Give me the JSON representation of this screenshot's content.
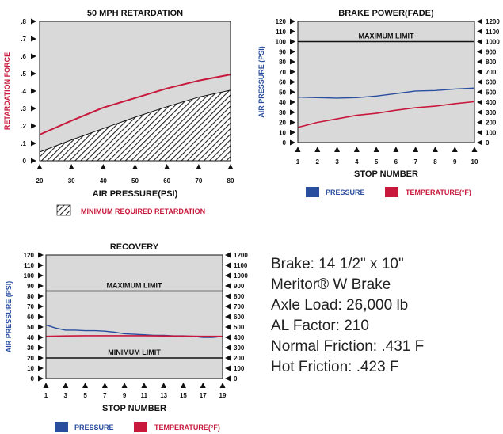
{
  "colors": {
    "pressure": "#2a4e9e",
    "temperature": "#c8193c",
    "plot_bg": "#d9d9d9"
  },
  "specs": [
    "Brake: 14 1/2\" x 10\"",
    "Meritor® W Brake",
    "Axle Load: 26,000 lb",
    "AL Factor: 210",
    "Normal Friction: .431 F",
    "Hot Friction: .423 F"
  ],
  "chart_data": [
    {
      "type": "area",
      "title": "50 MPH RETARDATION",
      "xlabel": "AIR PRESSURE(PSI)",
      "ylabel": "RETARDATION FORCE",
      "x": [
        20,
        30,
        40,
        50,
        60,
        70,
        80
      ],
      "xlim": [
        20,
        80
      ],
      "ylim": [
        0,
        0.8
      ],
      "yticks": [
        "0",
        ".1",
        ".2",
        ".3",
        ".4",
        ".5",
        ".6",
        ".7",
        ".8"
      ],
      "series": [
        {
          "values": [
            0.15,
            0.23,
            0.305,
            0.36,
            0.415,
            0.46,
            0.495
          ]
        },
        {
          "name": "MINIMUM REQUIRED RETARDATION",
          "values": [
            0.05,
            0.12,
            0.185,
            0.25,
            0.31,
            0.365,
            0.405
          ]
        }
      ]
    },
    {
      "type": "line",
      "title": "BRAKE POWER(FADE)",
      "xlabel": "STOP NUMBER",
      "ylabel": "AIR PRESSURE (PSI)",
      "x": [
        1,
        2,
        3,
        4,
        5,
        6,
        7,
        8,
        9,
        10
      ],
      "xlim": [
        1,
        10
      ],
      "ylim": [
        0,
        120
      ],
      "yticks": [
        "0",
        "10",
        "20",
        "30",
        "40",
        "50",
        "60",
        "70",
        "80",
        "90",
        "100",
        "110",
        "120"
      ],
      "y2lim": [
        0,
        1200
      ],
      "y2ticks": [
        "0",
        "100",
        "200",
        "300",
        "400",
        "500",
        "600",
        "700",
        "800",
        "900",
        "1000",
        "1100",
        "1200"
      ],
      "limit": {
        "label": "MAXIMUM LIMIT",
        "value": 100
      },
      "legend": [
        "PRESSURE",
        "TEMPERATURE(°F)"
      ],
      "series": [
        {
          "name": "PRESSURE",
          "axis": "left",
          "values": [
            45,
            44.5,
            44,
            44.5,
            46,
            48.5,
            51,
            51.5,
            53,
            54
          ]
        },
        {
          "name": "TEMPERATURE(°F)",
          "axis": "right",
          "values": [
            150,
            200,
            235,
            270,
            290,
            320,
            345,
            360,
            385,
            405
          ]
        }
      ]
    },
    {
      "type": "line",
      "title": "RECOVERY",
      "xlabel": "STOP NUMBER",
      "ylabel": "AIR PRESSURE (PSI)",
      "x": [
        1,
        2,
        3,
        4,
        5,
        6,
        7,
        8,
        9,
        10,
        11,
        12,
        13,
        14,
        15,
        16,
        17,
        18,
        19
      ],
      "xticks": [
        "1",
        "3",
        "5",
        "7",
        "9",
        "11",
        "13",
        "15",
        "17",
        "19"
      ],
      "xlim": [
        1,
        19
      ],
      "ylim": [
        0,
        120
      ],
      "yticks": [
        "0",
        "10",
        "20",
        "30",
        "40",
        "50",
        "60",
        "70",
        "80",
        "90",
        "100",
        "110",
        "120"
      ],
      "y2lim": [
        0,
        1200
      ],
      "y2ticks": [
        "0",
        "100",
        "200",
        "300",
        "400",
        "500",
        "600",
        "700",
        "800",
        "900",
        "1000",
        "1100",
        "1200"
      ],
      "limits": [
        {
          "label": "MAXIMUM LIMIT",
          "value": 85
        },
        {
          "label": "MINIMUM LIMIT",
          "value": 20
        }
      ],
      "legend": [
        "PRESSURE",
        "TEMPERATURE(°F)"
      ],
      "series": [
        {
          "name": "PRESSURE",
          "axis": "left",
          "values": [
            52,
            49,
            47,
            47,
            46.5,
            46.5,
            46,
            45,
            43.5,
            43,
            42.5,
            42,
            42,
            41.5,
            41.5,
            41,
            40,
            40,
            41
          ]
        },
        {
          "name": "TEMPERATURE(°F)",
          "axis": "right",
          "values": [
            410,
            412,
            414,
            415,
            416,
            416,
            416,
            416,
            416,
            416,
            416,
            415,
            414,
            413,
            412,
            411,
            410,
            410,
            410
          ]
        }
      ]
    }
  ]
}
